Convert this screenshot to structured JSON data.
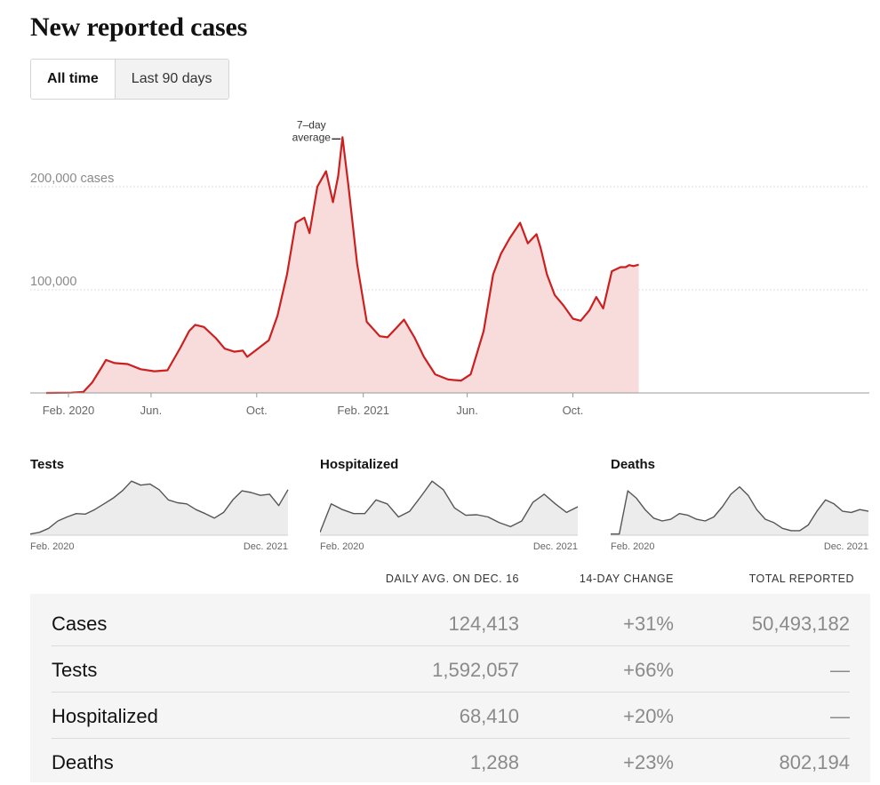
{
  "title": "New reported cases",
  "range_toggle": {
    "options": [
      "All time",
      "Last 90 days"
    ],
    "selected": "All time"
  },
  "colors": {
    "cases_line": "#cc1f1f",
    "cases_fill": "#f8dcdc",
    "mini_line": "#555555",
    "mini_fill": "#ececec"
  },
  "chart_data": {
    "type": "area",
    "title": "New reported cases",
    "annotation": [
      "7–day",
      "average"
    ],
    "x_ticks": [
      "Feb. 2020",
      "Jun.",
      "Oct.",
      "Feb. 2021",
      "Jun.",
      "Oct."
    ],
    "y_ticks": [
      {
        "value": 200000,
        "label": "200,000 cases"
      },
      {
        "value": 100000,
        "label": "100,000"
      }
    ],
    "ylim": [
      0,
      260000
    ],
    "grid": true,
    "series": [
      {
        "x": [
          "2020-02-01",
          "2020-03-01",
          "2020-03-15",
          "2020-03-25",
          "2020-04-05",
          "2020-04-10",
          "2020-04-20",
          "2020-05-05",
          "2020-05-20",
          "2020-06-05",
          "2020-06-20",
          "2020-07-05",
          "2020-07-15",
          "2020-07-22",
          "2020-08-01",
          "2020-08-15",
          "2020-08-25",
          "2020-09-05",
          "2020-09-15",
          "2020-09-20",
          "2020-10-01",
          "2020-10-15",
          "2020-10-25",
          "2020-11-05",
          "2020-11-15",
          "2020-11-25",
          "2020-12-01",
          "2020-12-10",
          "2020-12-20",
          "2020-12-28",
          "2021-01-03",
          "2021-01-08",
          "2021-01-15",
          "2021-01-25",
          "2021-02-05",
          "2021-02-20",
          "2021-03-01",
          "2021-03-10",
          "2021-03-20",
          "2021-04-01",
          "2021-04-12",
          "2021-04-25",
          "2021-05-10",
          "2021-05-25",
          "2021-06-05",
          "2021-06-20",
          "2021-07-01",
          "2021-07-10",
          "2021-07-20",
          "2021-08-01",
          "2021-08-10",
          "2021-08-20",
          "2021-08-25",
          "2021-09-01",
          "2021-09-10",
          "2021-09-20",
          "2021-10-01",
          "2021-10-10",
          "2021-10-20",
          "2021-10-28",
          "2021-11-05",
          "2021-11-15",
          "2021-11-25",
          "2021-12-01",
          "2021-12-05",
          "2021-12-10",
          "2021-12-16"
        ],
        "values": [
          0,
          300,
          1000,
          10000,
          25000,
          32000,
          29000,
          28000,
          23000,
          21000,
          22000,
          44000,
          60000,
          66000,
          64000,
          53000,
          43000,
          40000,
          41000,
          35000,
          42000,
          51000,
          75000,
          115000,
          165000,
          170000,
          155000,
          200000,
          215000,
          185000,
          210000,
          248000,
          200000,
          125000,
          69000,
          55000,
          54000,
          62000,
          71000,
          54000,
          35000,
          18000,
          13000,
          12000,
          18000,
          60000,
          115000,
          135000,
          150000,
          165000,
          145000,
          154000,
          140000,
          115000,
          95000,
          85000,
          72000,
          70000,
          80000,
          93000,
          82000,
          118000,
          122000,
          122000,
          124000,
          123000,
          124413
        ]
      }
    ]
  },
  "mini_charts": [
    {
      "title": "Tests",
      "x_labels": [
        "Feb. 2020",
        "Dec. 2021"
      ],
      "values": [
        0.02,
        0.05,
        0.12,
        0.25,
        0.32,
        0.38,
        0.37,
        0.45,
        0.55,
        0.65,
        0.78,
        0.95,
        0.88,
        0.9,
        0.8,
        0.62,
        0.57,
        0.55,
        0.45,
        0.38,
        0.3,
        0.4,
        0.62,
        0.78,
        0.75,
        0.7,
        0.72,
        0.52,
        0.8
      ]
    },
    {
      "title": "Hospitalized",
      "x_labels": [
        "Feb. 2020",
        "Dec. 2021"
      ],
      "values": [
        0.05,
        0.55,
        0.45,
        0.38,
        0.38,
        0.62,
        0.55,
        0.32,
        0.42,
        0.68,
        0.95,
        0.8,
        0.48,
        0.35,
        0.36,
        0.32,
        0.22,
        0.15,
        0.25,
        0.58,
        0.72,
        0.55,
        0.4,
        0.5
      ]
    },
    {
      "title": "Deaths",
      "x_labels": [
        "Feb. 2020",
        "Dec. 2021"
      ],
      "values": [
        0.02,
        0.02,
        0.78,
        0.65,
        0.45,
        0.3,
        0.25,
        0.28,
        0.38,
        0.35,
        0.28,
        0.25,
        0.32,
        0.5,
        0.72,
        0.85,
        0.7,
        0.45,
        0.28,
        0.22,
        0.12,
        0.08,
        0.08,
        0.18,
        0.42,
        0.62,
        0.55,
        0.42,
        0.4,
        0.45,
        0.42
      ]
    }
  ],
  "table": {
    "headers": [
      "DAILY AVG. ON DEC. 16",
      "14-DAY CHANGE",
      "TOTAL REPORTED"
    ],
    "rows": [
      {
        "label": "Cases",
        "avg": "124,413",
        "change": "+31%",
        "total": "50,493,182"
      },
      {
        "label": "Tests",
        "avg": "1,592,057",
        "change": "+66%",
        "total": "—"
      },
      {
        "label": "Hospitalized",
        "avg": "68,410",
        "change": "+20%",
        "total": "—"
      },
      {
        "label": "Deaths",
        "avg": "1,288",
        "change": "+23%",
        "total": "802,194"
      }
    ]
  }
}
